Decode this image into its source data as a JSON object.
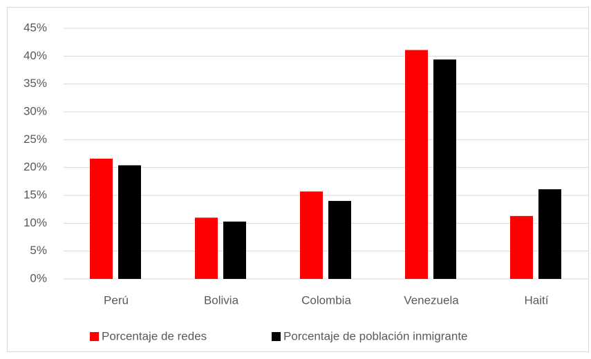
{
  "chart_data": {
    "type": "bar",
    "categories": [
      "Perú",
      "Bolivia",
      "Colombia",
      "Venezuela",
      "Haití"
    ],
    "series": [
      {
        "name": "Porcentaje de redes",
        "color": "#ff0000",
        "values": [
          21.6,
          11.0,
          15.7,
          41.1,
          11.3
        ]
      },
      {
        "name": "Porcentaje de población inmigrante",
        "color": "#000000",
        "values": [
          20.4,
          10.3,
          14.0,
          39.4,
          16.1
        ]
      }
    ],
    "ylim": [
      0,
      45
    ],
    "yticks": [
      {
        "value": 0,
        "label": "0%"
      },
      {
        "value": 5,
        "label": "5%"
      },
      {
        "value": 10,
        "label": "10%"
      },
      {
        "value": 15,
        "label": "15%"
      },
      {
        "value": 20,
        "label": "20%"
      },
      {
        "value": 25,
        "label": "25%"
      },
      {
        "value": 30,
        "label": "30%"
      },
      {
        "value": 35,
        "label": "35%"
      },
      {
        "value": 40,
        "label": "40%"
      },
      {
        "value": 45,
        "label": "45%"
      }
    ],
    "grid": true,
    "legend": "bottom"
  }
}
